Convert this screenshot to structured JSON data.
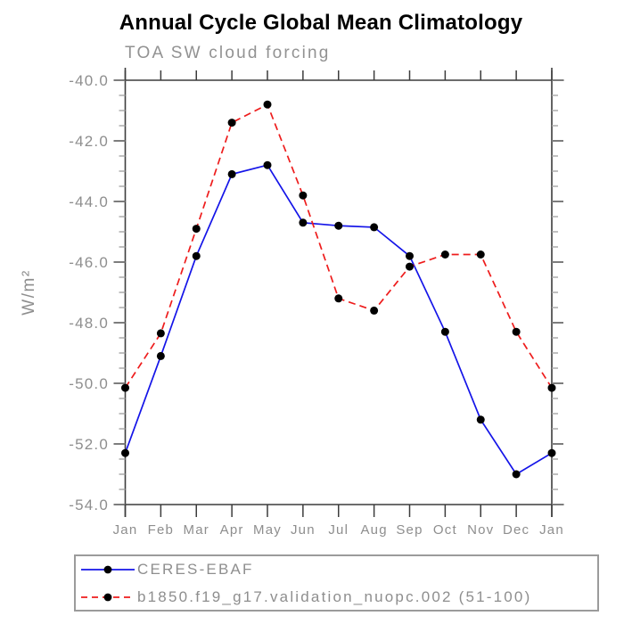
{
  "title": "Annual Cycle Global Mean Climatology",
  "subtitle": "TOA SW cloud forcing",
  "chart_data": {
    "type": "line",
    "categories": [
      "Jan",
      "Feb",
      "Mar",
      "Apr",
      "May",
      "Jun",
      "Jul",
      "Aug",
      "Sep",
      "Oct",
      "Nov",
      "Dec",
      "Jan"
    ],
    "series": [
      {
        "name": "CERES-EBAF",
        "color": "#1414e8",
        "line_style": "solid",
        "marker": "filled-circle",
        "marker_color": "#000000",
        "values": [
          -52.3,
          -49.1,
          -45.8,
          -43.1,
          -42.8,
          -44.7,
          -44.8,
          -44.85,
          -45.8,
          -48.3,
          -51.2,
          -53.0,
          -52.3
        ]
      },
      {
        "name": "b1850.f19_g17.validation_nuopc.002 (51-100)",
        "color": "#ee1c1c",
        "line_style": "dashed",
        "marker": "filled-circle",
        "marker_color": "#000000",
        "values": [
          -50.15,
          -48.35,
          -44.9,
          -41.4,
          -40.8,
          -43.8,
          -47.2,
          -47.6,
          -46.15,
          -45.75,
          -45.75,
          -48.3,
          -50.15
        ]
      }
    ],
    "xlabel": "",
    "ylabel": "W/m²",
    "ylim": [
      -54.0,
      -40.0
    ],
    "ytick_step": 2.0,
    "yminor_step": 0.5,
    "ytick_labels": [
      "-40.0",
      "-42.0",
      "-44.0",
      "-46.0",
      "-48.0",
      "-50.0",
      "-52.0",
      "-54.0"
    ],
    "grid": false,
    "legend_position": "bottom-left-box"
  },
  "colors": {
    "axis": "#3c3c3c",
    "tick_major": "#7d7d7d",
    "tick_minor": "#a6a6a6",
    "label_gray": "#8e8e8e",
    "title_black": "#000000",
    "legend_border": "#9b9b9b"
  }
}
